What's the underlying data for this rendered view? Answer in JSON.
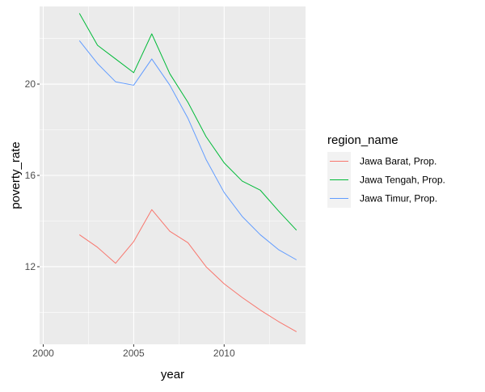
{
  "chart_data": {
    "type": "line",
    "title": "",
    "xlabel": "year",
    "ylabel": "poverty_rate",
    "xlim": [
      1999.8,
      2014.5
    ],
    "ylim": [
      8.6,
      23.4
    ],
    "x_ticks": [
      2000,
      2005,
      2010
    ],
    "x_tick_labels": [
      "2000",
      "2005",
      "2010"
    ],
    "y_ticks": [
      12,
      16,
      20
    ],
    "y_tick_labels": [
      "12",
      "16",
      "20"
    ],
    "grid": true,
    "panel_background": "#EBEBEB",
    "legend": {
      "title": "region_name",
      "placement": "right"
    },
    "x": [
      2002,
      2003,
      2004,
      2005,
      2006,
      2007,
      2008,
      2009,
      2010,
      2011,
      2012,
      2013,
      2014
    ],
    "series": [
      {
        "name": "Jawa Barat, Prop.",
        "color": "#F8766D",
        "values": [
          13.4,
          12.85,
          12.15,
          13.1,
          14.5,
          13.55,
          13.05,
          12.0,
          11.25,
          10.65,
          10.1,
          9.6,
          9.15
        ]
      },
      {
        "name": "Jawa Tengah, Prop.",
        "color": "#00BA38",
        "values": [
          23.1,
          21.7,
          21.1,
          20.5,
          22.2,
          20.45,
          19.2,
          17.7,
          16.55,
          15.75,
          15.35,
          14.45,
          13.6
        ]
      },
      {
        "name": "Jawa Timur, Prop.",
        "color": "#619CFF",
        "values": [
          21.9,
          20.9,
          20.1,
          19.95,
          21.1,
          19.95,
          18.5,
          16.7,
          15.25,
          14.2,
          13.4,
          12.75,
          12.3
        ]
      }
    ]
  }
}
